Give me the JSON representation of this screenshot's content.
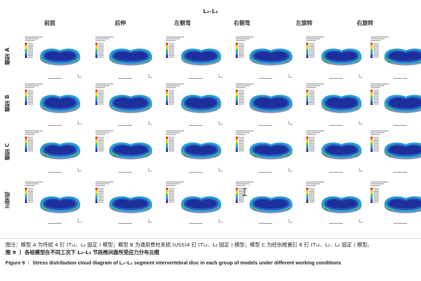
{
  "figure": {
    "title": "L₂–L₃",
    "columns": [
      {
        "id": "flexion",
        "label": "前屈"
      },
      {
        "id": "extension",
        "label": "后伸"
      },
      {
        "id": "left-bend",
        "label": "左侧弯"
      },
      {
        "id": "right-bend",
        "label": "右侧弯"
      },
      {
        "id": "left-rotation",
        "label": "左旋转"
      },
      {
        "id": "right-rotation",
        "label": "右旋转"
      }
    ],
    "rows": [
      {
        "id": "model-a",
        "label": "模型 A"
      },
      {
        "id": "model-b",
        "label": "模型 B"
      },
      {
        "id": "model-c",
        "label": "模型 C"
      },
      {
        "id": "normal-group",
        "label": "正常组"
      }
    ],
    "legend_colors": [
      "#d7191c",
      "#f07c1f",
      "#f5d21b",
      "#c6e02a",
      "#6cc54a",
      "#2fb38a",
      "#27a0c8",
      "#2a6fce",
      "#2644b8",
      "#1b2d94"
    ],
    "disc_colors": {
      "core": "#1c2f9a",
      "mid": "#2757c4",
      "ring": "#2a9ed0",
      "hot": "#46c07a"
    }
  },
  "caption": {
    "zh_line1": "图注：模型 A 为传统 4 钉 (T₁₂、L₂ 固定 ) 模型；模型 B 为通用脊柱系统 (USS)4 钉 (T₁₂、L₂ 固定 ) 模型；模型 C 为经伤椎置钉 6 钉 (T₁₂、L₁、L₂ 固定 ) 模型。",
    "zh_line2": "图 9  丨 各组模型在不同工况下 L₂–L₃ 节段椎间盘所受应力分布云图",
    "en_label": "Figure 9",
    "en_sep": "丨",
    "en_text": "Stress distribution cloud diagram of L₂–L₃ segment intervertebral disc in each group of models under different working conditions"
  }
}
